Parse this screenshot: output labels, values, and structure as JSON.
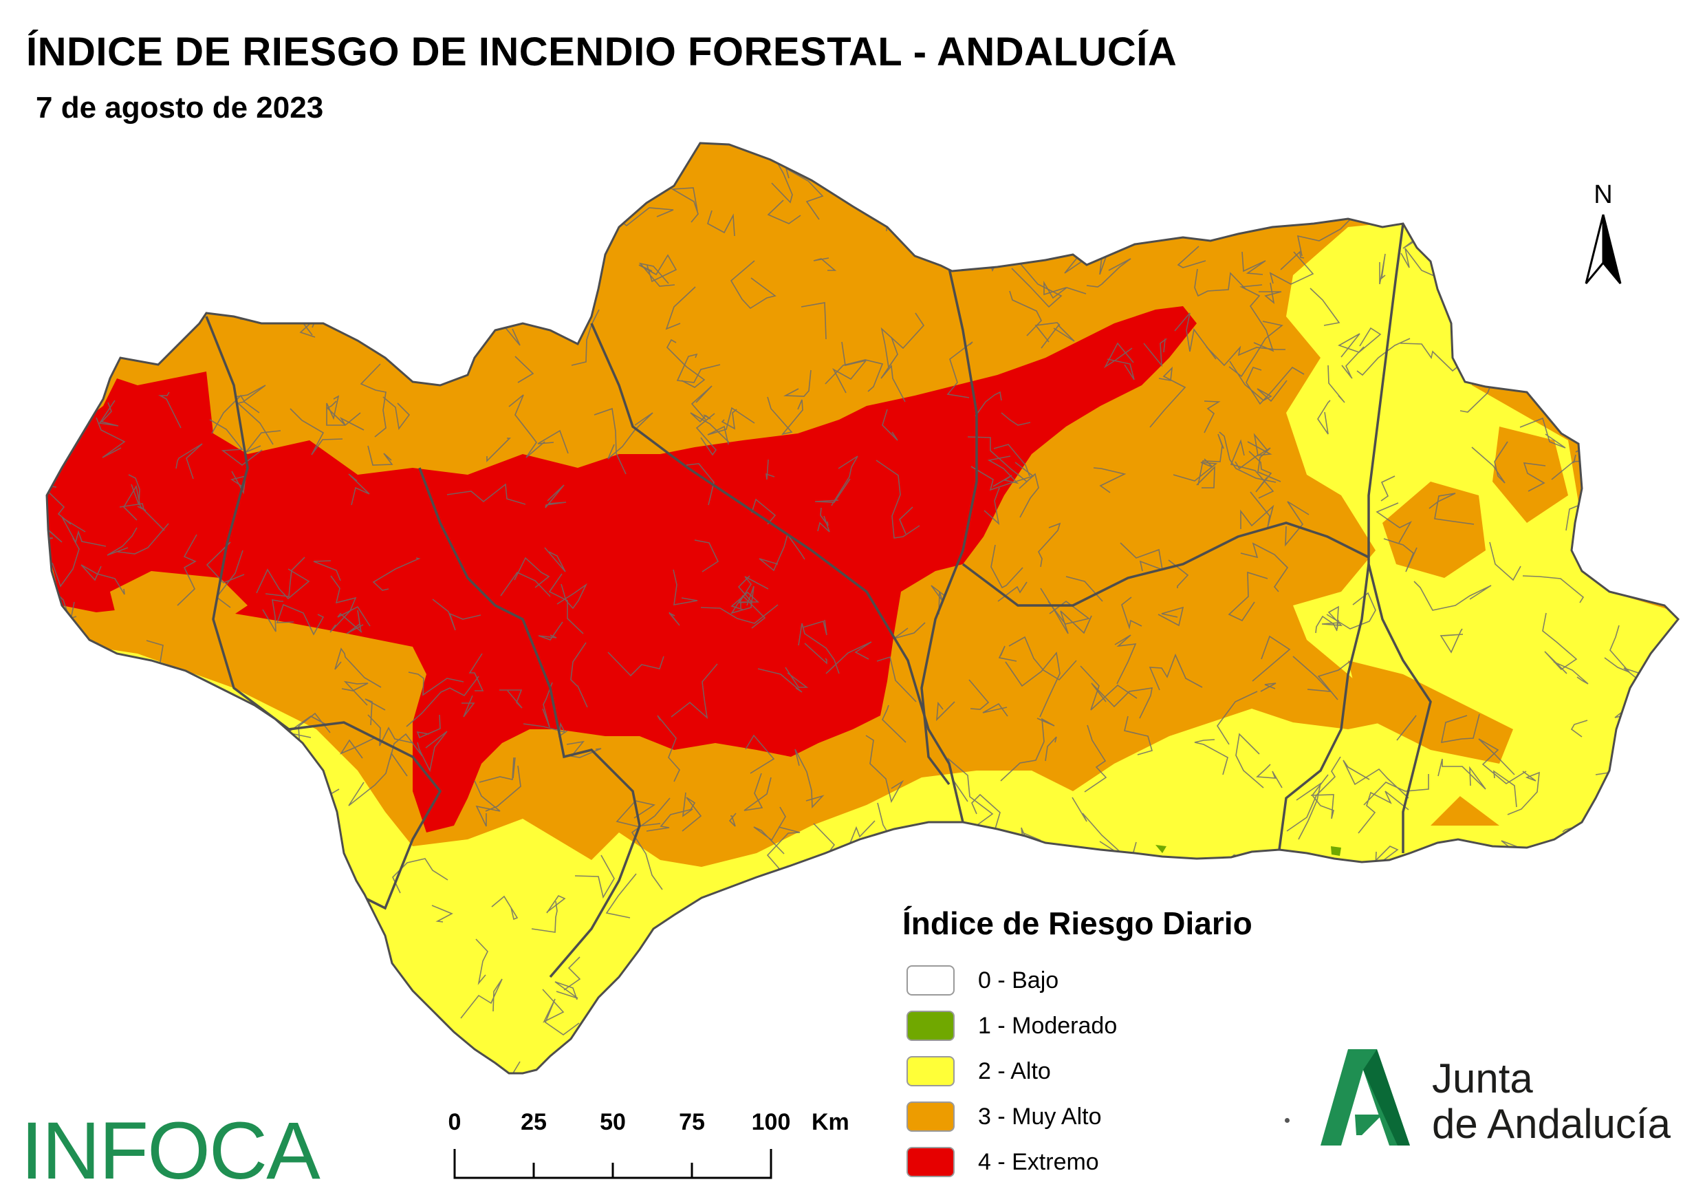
{
  "title": "ÍNDICE DE RIESGO DE INCENDIO FORESTAL - ANDALUCÍA",
  "subtitle": "7 de agosto de 2023",
  "north_label": "N",
  "legend": {
    "title": "Índice de Riesgo Diario",
    "items": [
      {
        "label": "0 - Bajo",
        "color": "#ffffff"
      },
      {
        "label": "1 - Moderado",
        "color": "#70a800"
      },
      {
        "label": "2 - Alto",
        "color": "#ffff38"
      },
      {
        "label": "3 - Muy Alto",
        "color": "#ed9c00"
      },
      {
        "label": "4 - Extremo",
        "color": "#e60000"
      }
    ]
  },
  "scale_bar": {
    "ticks": [
      "0",
      "25",
      "50",
      "75",
      "100"
    ],
    "unit": "Km"
  },
  "logos": {
    "infoca": "INFOCA",
    "junta_line1": "Junta",
    "junta_line2": "de Andalucía"
  },
  "colors": {
    "boundary": "#5a5a5a",
    "moderado": "#70a800",
    "alto": "#ffff38",
    "muy_alto": "#ed9c00",
    "extremo": "#e60000",
    "brand_green": "#1f8f52"
  }
}
